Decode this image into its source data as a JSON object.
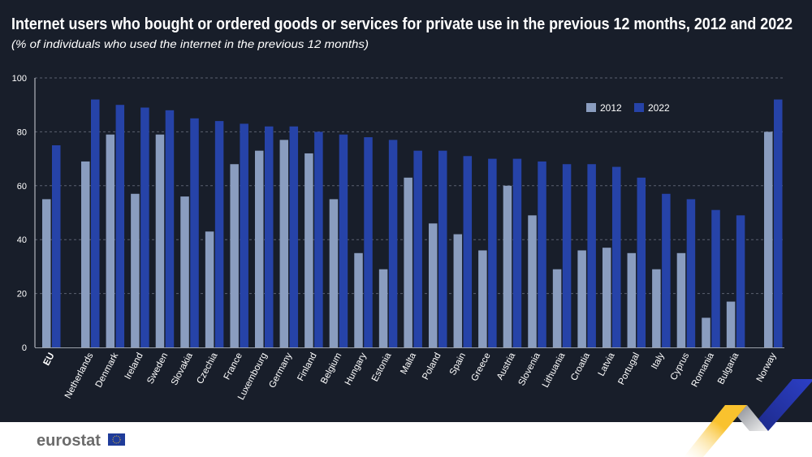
{
  "chart_data": {
    "type": "bar",
    "title": "Internet users who bought or ordered goods or services for private use in the previous 12 months, 2012 and 2022",
    "subtitle": "(% of individuals who used the internet in the previous 12 months)",
    "xlabel": "",
    "ylabel": "",
    "ylim": [
      0,
      100
    ],
    "yticks": [
      0,
      20,
      40,
      60,
      80,
      100
    ],
    "grid": true,
    "legend_placement": "top-right",
    "categories": [
      "EU",
      "Netherlands",
      "Denmark",
      "Ireland",
      "Sweden",
      "Slovakia",
      "Czechia",
      "France",
      "Luxembourg",
      "Germany",
      "Finland",
      "Belgium",
      "Hungary",
      "Estonia",
      "Malta",
      "Poland",
      "Spain",
      "Greece",
      "Austria",
      "Slovenia",
      "Lithuania",
      "Croatia",
      "Latvia",
      "Portugal",
      "Italy",
      "Cyprus",
      "Romania",
      "Bulgaria",
      "Norway"
    ],
    "series": [
      {
        "name": "2012",
        "color": "#8a9dbf",
        "values": [
          55,
          69,
          79,
          57,
          79,
          56,
          43,
          68,
          73,
          77,
          72,
          55,
          35,
          29,
          63,
          46,
          42,
          36,
          60,
          49,
          29,
          36,
          37,
          35,
          29,
          35,
          11,
          17,
          80
        ]
      },
      {
        "name": "2022",
        "color": "#2643a8",
        "values": [
          75,
          92,
          90,
          89,
          88,
          85,
          84,
          83,
          82,
          82,
          80,
          79,
          78,
          77,
          73,
          73,
          71,
          70,
          70,
          69,
          68,
          68,
          67,
          63,
          57,
          55,
          51,
          49,
          92
        ]
      }
    ]
  },
  "colors": {
    "background": "#181e2a",
    "text": "#ffffff",
    "grid": "#5a6070"
  },
  "footer": {
    "logo_text": "eurostat"
  }
}
